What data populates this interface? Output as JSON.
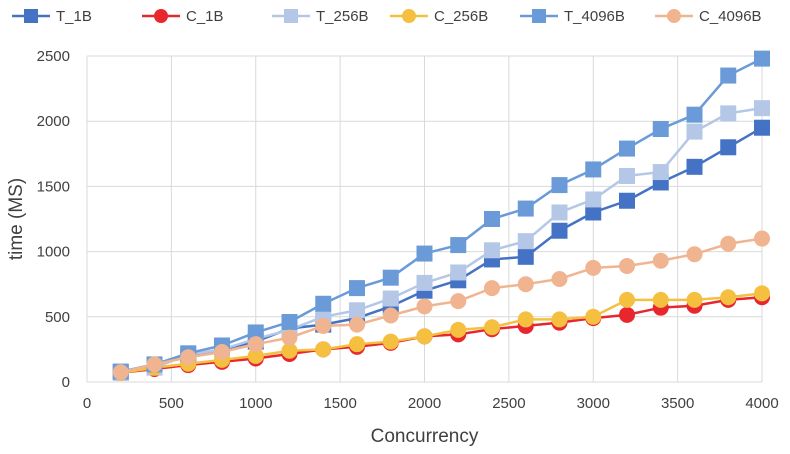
{
  "chart_data": {
    "type": "line",
    "title": "",
    "xlabel": "Concurrency",
    "ylabel": "time (MS)",
    "xlim": [
      0,
      4000
    ],
    "ylim": [
      0,
      2500
    ],
    "x_ticks": [
      0,
      500,
      1000,
      1500,
      2000,
      2500,
      3000,
      3500,
      4000
    ],
    "y_ticks": [
      0,
      500,
      1000,
      1500,
      2000,
      2500
    ],
    "grid": true,
    "legend_position": "top",
    "x": [
      200,
      400,
      600,
      800,
      1000,
      1200,
      1400,
      1600,
      1800,
      2000,
      2200,
      2400,
      2600,
      2800,
      3000,
      3200,
      3400,
      3600,
      3800,
      4000
    ],
    "series": [
      {
        "name": "T_1B",
        "marker": "square",
        "color": "#4472C4",
        "values": [
          75,
          130,
          200,
          250,
          310,
          410,
          440,
          490,
          580,
          700,
          780,
          940,
          960,
          1160,
          1300,
          1390,
          1530,
          1650,
          1800,
          1950
        ]
      },
      {
        "name": "C_1B",
        "marker": "circle",
        "color": "#E8262E",
        "values": [
          70,
          100,
          130,
          155,
          180,
          215,
          250,
          270,
          300,
          350,
          365,
          405,
          430,
          455,
          490,
          515,
          570,
          585,
          630,
          650
        ]
      },
      {
        "name": "T_256B",
        "marker": "square",
        "color": "#B4C7E7",
        "values": [
          70,
          110,
          210,
          250,
          330,
          400,
          500,
          550,
          640,
          760,
          840,
          1010,
          1080,
          1300,
          1400,
          1580,
          1610,
          1920,
          2060,
          2100
        ]
      },
      {
        "name": "C_256B",
        "marker": "circle",
        "color": "#F5C040",
        "values": [
          70,
          110,
          140,
          170,
          200,
          240,
          250,
          290,
          310,
          350,
          400,
          420,
          480,
          480,
          500,
          630,
          630,
          630,
          650,
          680
        ]
      },
      {
        "name": "T_4096B",
        "marker": "square",
        "color": "#6A9BD8",
        "values": [
          80,
          135,
          220,
          280,
          380,
          460,
          600,
          720,
          800,
          985,
          1050,
          1250,
          1330,
          1510,
          1630,
          1790,
          1940,
          2050,
          2350,
          2480
        ]
      },
      {
        "name": "C_4096B",
        "marker": "circle",
        "color": "#F0B490",
        "values": [
          75,
          135,
          190,
          230,
          290,
          340,
          430,
          440,
          510,
          580,
          620,
          720,
          750,
          790,
          875,
          890,
          930,
          980,
          1060,
          1100
        ]
      }
    ]
  }
}
